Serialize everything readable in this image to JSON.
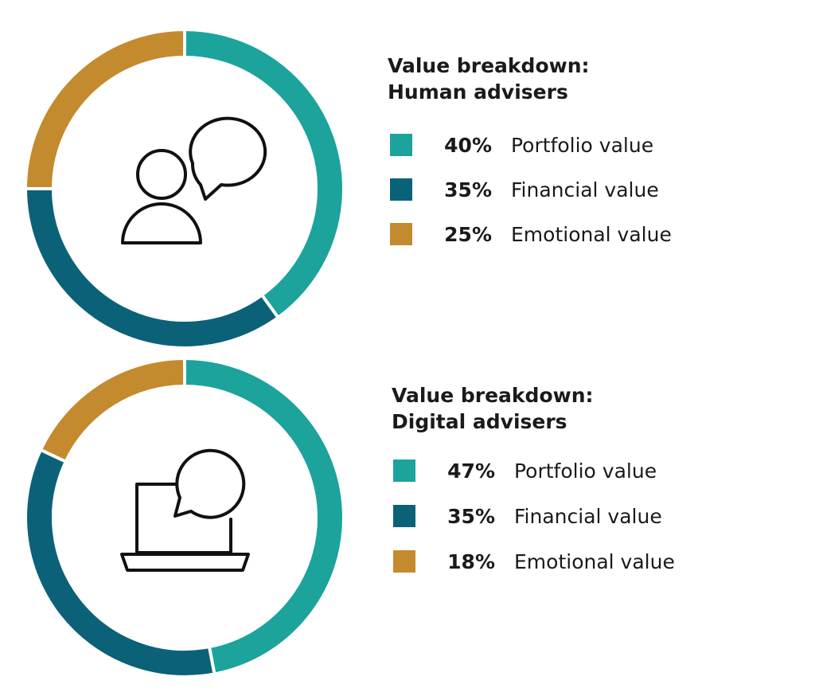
{
  "chart_data": [
    {
      "type": "pie",
      "title": "Value breakdown: Human advisers",
      "categories": [
        "Portfolio value",
        "Financial value",
        "Emotional value"
      ],
      "values": [
        40,
        35,
        25
      ],
      "value_labels": [
        "40%",
        "35%",
        "25%"
      ],
      "colors": [
        "#1ba39c",
        "#0b6278",
        "#c48a2e"
      ],
      "donut": true
    },
    {
      "type": "pie",
      "title": "Value breakdown: Digital advisers",
      "categories": [
        "Portfolio value",
        "Financial value",
        "Emotional value"
      ],
      "values": [
        47,
        35,
        18
      ],
      "value_labels": [
        "47%",
        "35%",
        "18%"
      ],
      "colors": [
        "#1ba39c",
        "#0b6278",
        "#c48a2e"
      ],
      "donut": true
    }
  ]
}
